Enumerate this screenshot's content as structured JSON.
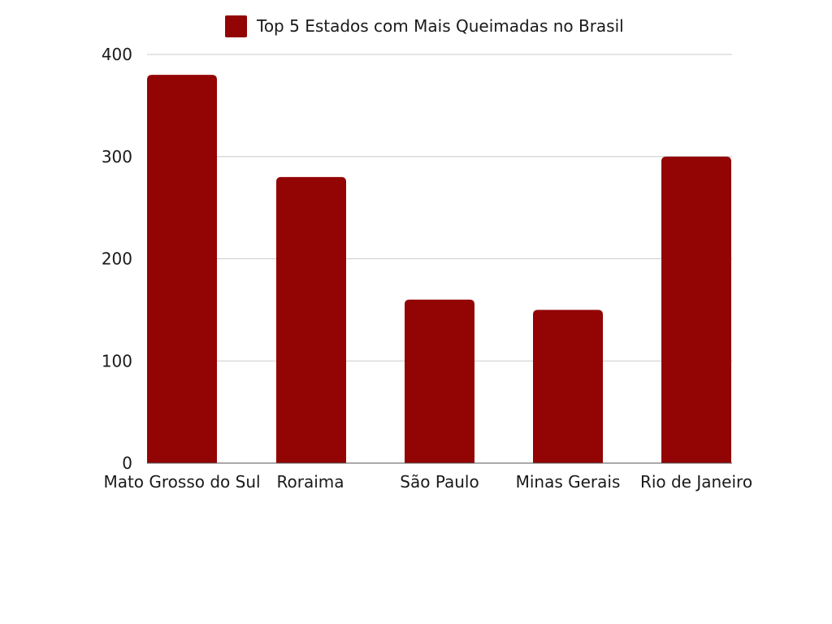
{
  "chart_data": {
    "type": "bar",
    "title": "",
    "xlabel": "",
    "ylabel": "",
    "categories": [
      "Mato Grosso do Sul",
      "Roraima",
      "São Paulo",
      "Minas Gerais",
      "Rio de Janeiro"
    ],
    "series": [
      {
        "name": "Top 5 Estados com Mais Queimadas no Brasil",
        "values": [
          380,
          280,
          160,
          150,
          300
        ],
        "color": "#930404"
      }
    ],
    "ylim": [
      0,
      400
    ],
    "yticks": [
      0,
      100,
      200,
      300,
      400
    ],
    "grid": true,
    "legend_position": "top-center"
  }
}
